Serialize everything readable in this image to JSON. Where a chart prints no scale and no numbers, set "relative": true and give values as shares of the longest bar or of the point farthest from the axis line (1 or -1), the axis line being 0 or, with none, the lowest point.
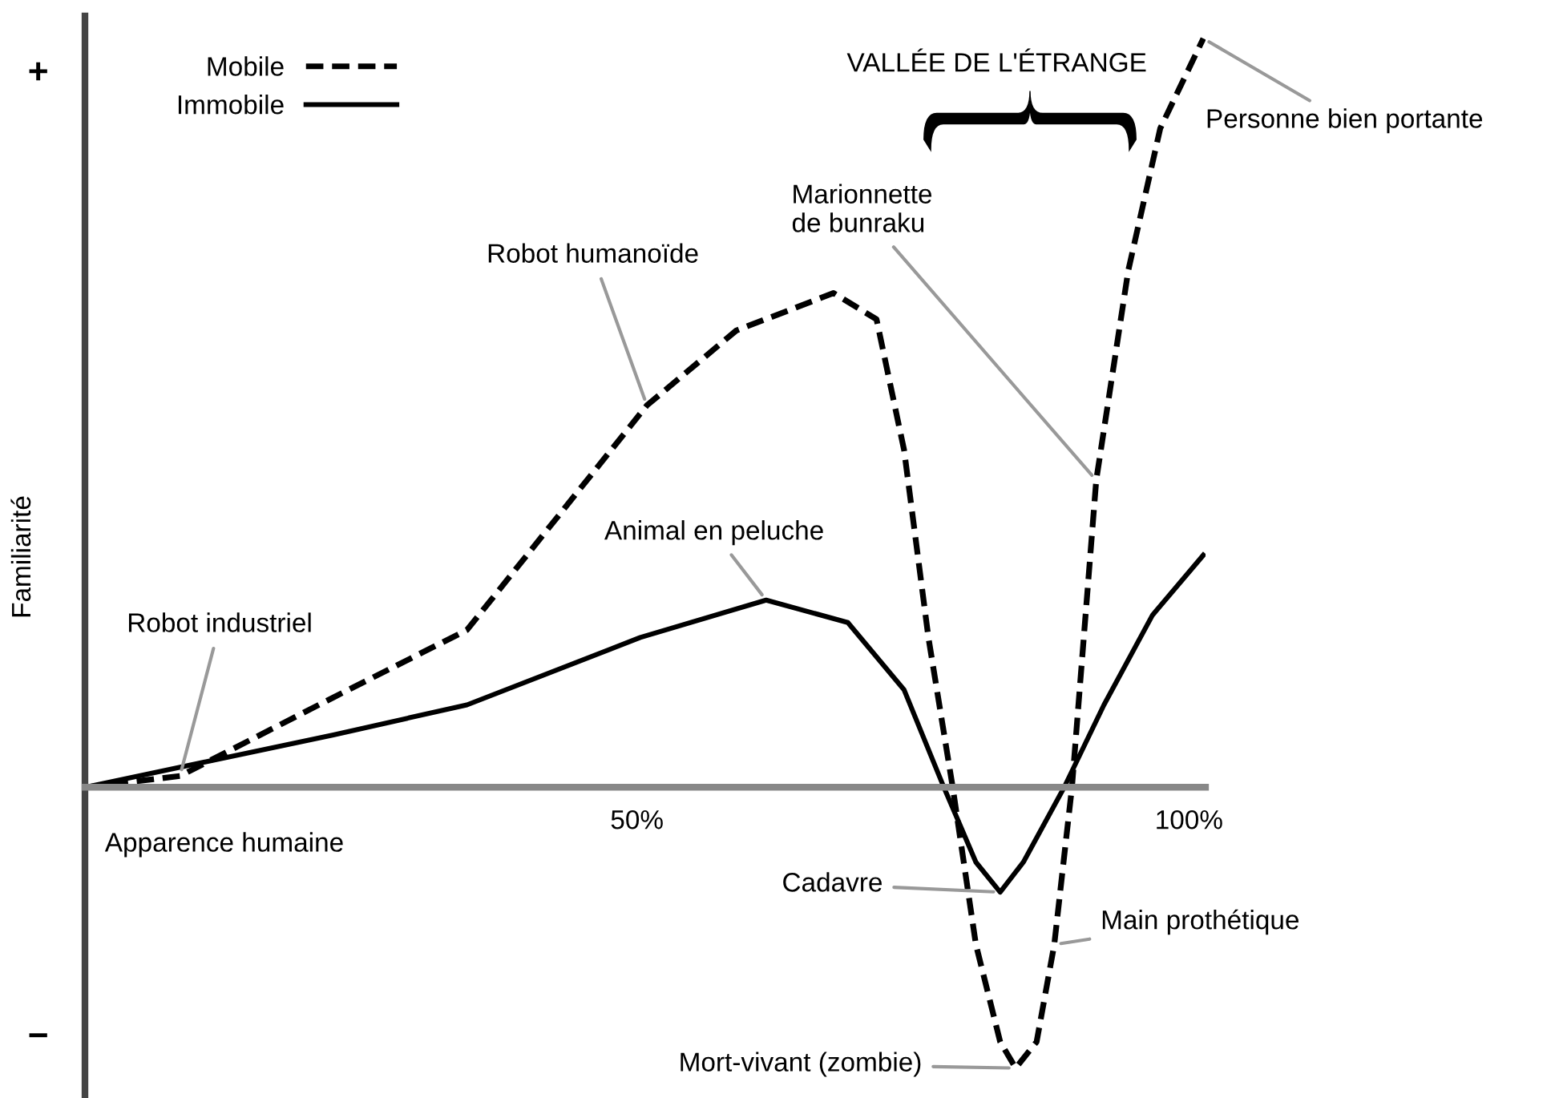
{
  "chart_data": {
    "type": "line",
    "relative": true,
    "ylabel": "Familiarité",
    "xlabel": "Apparence humaine",
    "xlim": [
      0,
      101.5
    ],
    "xticks": [
      {
        "value": 50,
        "label": "50%"
      },
      {
        "value": 100,
        "label": "100%"
      }
    ],
    "legend": "top left",
    "grid": false,
    "series": [
      {
        "name": "Mobile",
        "color": "#000000",
        "line_style": "dashed",
        "x": [
          0,
          8.6,
          22.5,
          34.6,
          50.9,
          59,
          67.8,
          71.7,
          74.2,
          76.4,
          78.6,
          80.7,
          82.9,
          84.3,
          86.2,
          87.8,
          89.4,
          91.6,
          94.5,
          97.4,
          101.3
        ],
        "values": [
          0,
          0.015,
          0.12,
          0.21,
          0.51,
          0.61,
          0.66,
          0.625,
          0.45,
          0.2,
          0,
          -0.21,
          -0.34,
          -0.375,
          -0.34,
          -0.21,
          0,
          0.41,
          0.69,
          0.88,
          1.0
        ]
      },
      {
        "name": "Immobile",
        "color": "#000000",
        "line_style": "solid",
        "x": [
          0,
          22.5,
          34.6,
          50.3,
          61.7,
          69.1,
          74.2,
          77.8,
          80.7,
          82.9,
          85,
          88.7,
          92.3,
          96.7,
          101.3
        ],
        "values": [
          0,
          0.07,
          0.11,
          0.2,
          0.25,
          0.22,
          0.13,
          0,
          -0.1,
          -0.14,
          -0.1,
          0,
          0.11,
          0.23,
          0.31
        ]
      }
    ],
    "annotations": [
      "+",
      "−",
      "VALLÉE DE L'ÉTRANGE",
      {
        "text": "Robot industriel",
        "x": 8.6,
        "y": 0.015
      },
      {
        "text": "Robot humanoïde",
        "x": 50.9,
        "y": 0.51
      },
      {
        "text": "Animal en peluche",
        "x": 61.7,
        "y": 0.25
      },
      {
        "text": "Marionnette\nde bunraku",
        "x": 91.6,
        "y": 0.41
      },
      {
        "text": "Personne bien portante",
        "x": 101.3,
        "y": 1.0
      },
      {
        "text": "Cadavre",
        "x": 82.9,
        "y": -0.14
      },
      {
        "text": "Main prothétique",
        "x": 87.8,
        "y": -0.21
      },
      {
        "text": "Mort-vivant (zombie)",
        "x": 84.3,
        "y": -0.375
      }
    ]
  }
}
